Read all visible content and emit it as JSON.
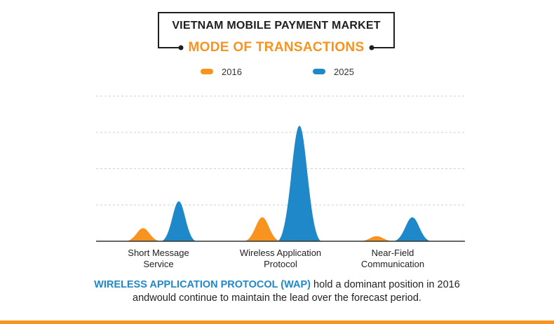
{
  "title": {
    "main": "VIETNAM MOBILE PAYMENT MARKET",
    "sub": "MODE OF TRANSACTIONS"
  },
  "legend": [
    {
      "label": "2016",
      "color": "#f7931e"
    },
    {
      "label": "2025",
      "color": "#1f88c8"
    }
  ],
  "chart_data": {
    "type": "area",
    "categories": [
      "Short Message Service",
      "Wireless Application Protocol",
      "Near-Field Communication"
    ],
    "series": [
      {
        "name": "2016",
        "color": "#f7931e",
        "values": [
          0.9,
          1.65,
          0.35
        ]
      },
      {
        "name": "2025",
        "color": "#1f88c8",
        "values": [
          2.75,
          7.95,
          1.65
        ]
      }
    ],
    "ylim": [
      0,
      10
    ],
    "grid": true,
    "legend_position": "top"
  },
  "category_labels": [
    {
      "line1": "Short Message",
      "line2": "Service"
    },
    {
      "line1": "Wireless Application",
      "line2": "Protocol"
    },
    {
      "line1": "Near-Field",
      "line2": "Communication"
    }
  ],
  "caption": {
    "lead": "WIRELESS APPLICATION PROTOCOL (WAP)",
    "rest": " hold a dominant position in 2016 andwould continue to maintain the lead over the forecast period."
  },
  "colors": {
    "accent": "#f7931e",
    "blue": "#1f88c8"
  }
}
